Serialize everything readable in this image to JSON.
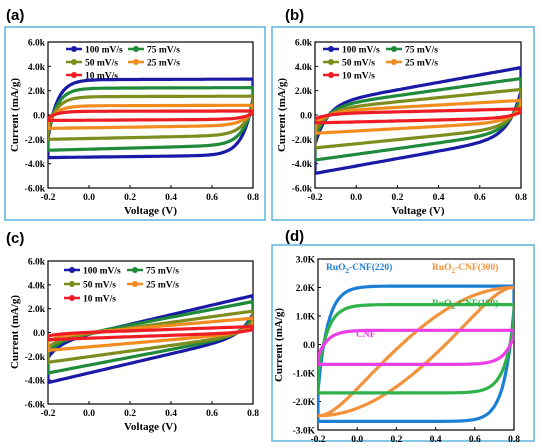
{
  "chart_data": [
    {
      "type": "line",
      "panel": "(a)",
      "xlabel": "Voltage (V)",
      "ylabel": "Current (mA/g)",
      "xlim": [
        -0.2,
        0.8
      ],
      "ylim": [
        -6000,
        6000
      ],
      "x_ticks": [
        "-0.2",
        "0.0",
        "0.2",
        "0.4",
        "0.6",
        "0.8"
      ],
      "y_ticks": [
        "-6.0k",
        "-4.0k",
        "-2.0k",
        "0.0",
        "2.0k",
        "4.0k",
        "6.0k"
      ],
      "legend_position": "top-left",
      "series": [
        {
          "name": "100 mV/s",
          "color": "#1a1aa6",
          "upper_current": 2900,
          "lower_current": -3300,
          "min_current": -3500,
          "max_current": 2950
        },
        {
          "name": "75 mV/s",
          "color": "#1f8a3a",
          "upper_current": 2200,
          "lower_current": -2450,
          "min_current": -2900,
          "max_current": 2250
        },
        {
          "name": "50 mV/s",
          "color": "#7f8c1e",
          "upper_current": 1500,
          "lower_current": -1650,
          "min_current": -2000,
          "max_current": 1550
        },
        {
          "name": "25 mV/s",
          "color": "#f28c1e",
          "upper_current": 750,
          "lower_current": -850,
          "min_current": -1100,
          "max_current": 800
        },
        {
          "name": "10 mV/s",
          "color": "#ee1c24",
          "upper_current": 300,
          "lower_current": -350,
          "min_current": -450,
          "max_current": 330
        }
      ]
    },
    {
      "type": "line",
      "panel": "(b)",
      "xlabel": "Voltage (V)",
      "ylabel": "Current (mA/g)",
      "xlim": [
        -0.2,
        0.8
      ],
      "ylim": [
        -6000,
        6000
      ],
      "x_ticks": [
        "-0.2",
        "0.0",
        "0.2",
        "0.4",
        "0.6",
        "0.8"
      ],
      "y_ticks": [
        "-6.0k",
        "-4.0k",
        "-2.0k",
        "0.0",
        "2.0k",
        "4.0k",
        "6.0k"
      ],
      "legend_position": "top-left",
      "series": [
        {
          "name": "100 mV/s",
          "color": "#1a1aa6",
          "min_current": -4800,
          "max_current": 3900
        },
        {
          "name": "75 mV/s",
          "color": "#1f8a3a",
          "min_current": -3700,
          "max_current": 3000
        },
        {
          "name": "50 mV/s",
          "color": "#7f8c1e",
          "min_current": -2700,
          "max_current": 2100
        },
        {
          "name": "25 mV/s",
          "color": "#f28c1e",
          "min_current": -1500,
          "max_current": 1200
        },
        {
          "name": "10 mV/s",
          "color": "#ee1c24",
          "min_current": -650,
          "max_current": 500
        }
      ]
    },
    {
      "type": "line",
      "panel": "(c)",
      "xlabel": "Voltage (V)",
      "ylabel": "Current (mA/g)",
      "xlim": [
        -0.2,
        0.8
      ],
      "ylim": [
        -6000,
        6000
      ],
      "x_ticks": [
        "-0.2",
        "0.0",
        "0.2",
        "0.4",
        "0.6",
        "0.8"
      ],
      "y_ticks": [
        "-6.0k",
        "-4.0k",
        "-2.0k",
        "0.0",
        "2.0k",
        "4.0k",
        "6.0k"
      ],
      "legend_position": "top-left",
      "series": [
        {
          "name": "100 mV/s",
          "color": "#1a1aa6",
          "min_current": -4200,
          "max_current": 3100
        },
        {
          "name": "75 mV/s",
          "color": "#1f8a3a",
          "min_current": -3400,
          "max_current": 2600
        },
        {
          "name": "50 mV/s",
          "color": "#7f8c1e",
          "min_current": -2500,
          "max_current": 1800
        },
        {
          "name": "25 mV/s",
          "color": "#f28c1e",
          "min_current": -1500,
          "max_current": 1200
        },
        {
          "name": "10 mV/s",
          "color": "#ee1c24",
          "min_current": -600,
          "max_current": 500
        }
      ]
    },
    {
      "type": "line",
      "panel": "(d)",
      "xlabel": "Voltage (V)",
      "ylabel": "Current (mA/g)",
      "xlim": [
        -0.2,
        0.8
      ],
      "ylim": [
        -3000,
        3000
      ],
      "x_ticks": [
        "-0.2",
        "0.0",
        "0.2",
        "0.4",
        "0.6",
        "0.8"
      ],
      "y_ticks": [
        "-3.0K",
        "-2.0K",
        "-1.0K",
        "0.0",
        "1.0K",
        "2.0K",
        "3.0K"
      ],
      "series": [
        {
          "name": "RuO2-CNF(220)",
          "color": "#1c7fd6",
          "min_current": -2700,
          "max_current": 2050
        },
        {
          "name": "RuO2-CNF(300)",
          "color": "#f2923c",
          "min_current": -2500,
          "max_current": 2000
        },
        {
          "name": "RuO2-CNF(180)",
          "color": "#2fb24a",
          "min_current": -1700,
          "max_current": 1400
        },
        {
          "name": "CNF",
          "color": "#ee3ee8",
          "min_current": -700,
          "max_current": 500
        }
      ]
    }
  ],
  "panel_labels": [
    "(a)",
    "(b)",
    "(c)",
    "(d)"
  ],
  "panel_d_annotations": {
    "ru220_main": "RuO",
    "ru220_sub": "2",
    "ru220_rest": "-CNF(220)",
    "ru300_main": "RuO",
    "ru300_sub": "2",
    "ru300_rest": "-CNF(300)",
    "ru180_main": "RuO",
    "ru180_sub": "2",
    "ru180_rest": "-CNF(180)",
    "cnf": "CNF"
  },
  "colors": {
    "frame": "#5ab4de"
  }
}
